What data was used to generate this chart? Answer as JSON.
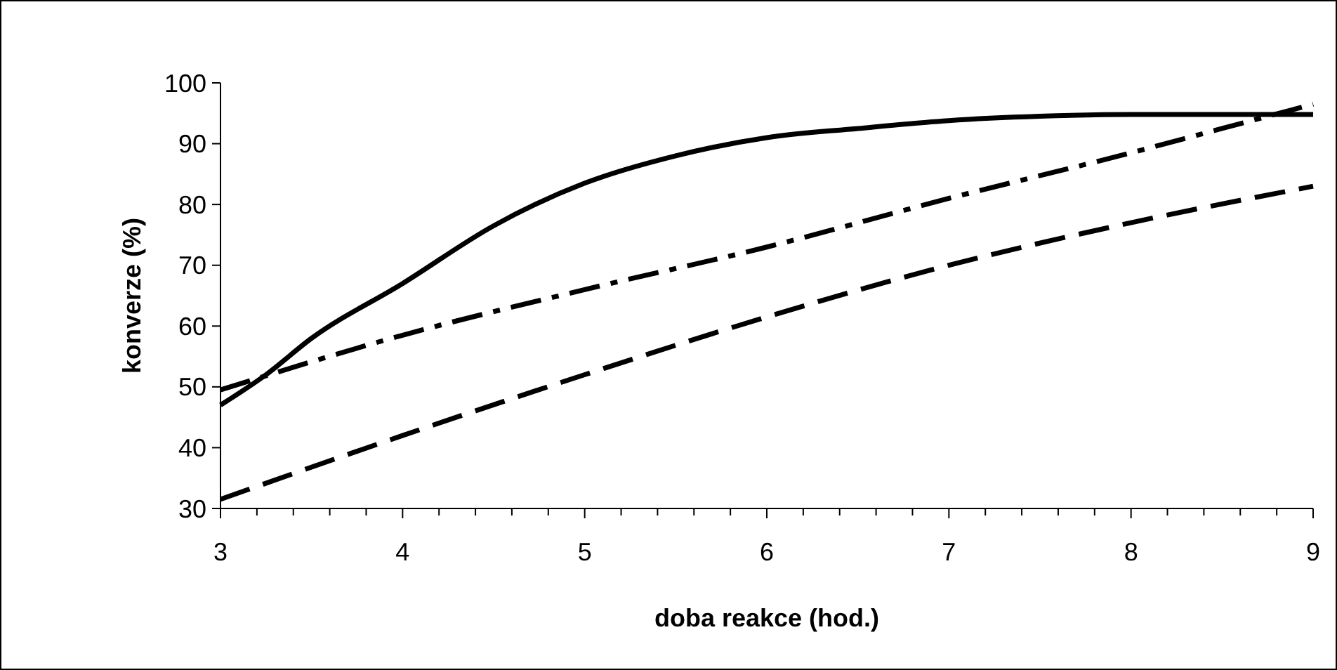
{
  "chart_data": {
    "type": "line",
    "xlabel": "doba reakce (hod.)",
    "ylabel": "konverze (%)",
    "xlim": [
      3,
      9
    ],
    "ylim": [
      30,
      100
    ],
    "xticks": [
      3,
      {
        "value": 3.2,
        "label": null
      },
      {
        "value": 3.4,
        "label": null
      },
      {
        "value": 3.6,
        "label": null
      },
      {
        "value": 3.8,
        "label": null
      },
      4,
      {
        "value": 4.2,
        "label": null
      },
      {
        "value": 4.4,
        "label": null
      },
      {
        "value": 4.6,
        "label": null
      },
      {
        "value": 4.8,
        "label": null
      },
      5,
      {
        "value": 5.2,
        "label": null
      },
      {
        "value": 5.4,
        "label": null
      },
      {
        "value": 5.6,
        "label": null
      },
      {
        "value": 5.8,
        "label": null
      },
      6,
      {
        "value": 6.2,
        "label": null
      },
      {
        "value": 6.4,
        "label": null
      },
      {
        "value": 6.6,
        "label": null
      },
      {
        "value": 6.8,
        "label": null
      },
      7,
      {
        "value": 7.2,
        "label": null
      },
      {
        "value": 7.4,
        "label": null
      },
      {
        "value": 7.6,
        "label": null
      },
      {
        "value": 7.8,
        "label": null
      },
      8,
      {
        "value": 8.2,
        "label": null
      },
      {
        "value": 8.4,
        "label": null
      },
      {
        "value": 8.6,
        "label": null
      },
      {
        "value": 8.8,
        "label": null
      },
      9
    ],
    "yticks": [
      30,
      40,
      50,
      60,
      70,
      80,
      90,
      100
    ],
    "grid": false,
    "marker": "none",
    "series": [
      {
        "color": "#000000",
        "line_style": "solid",
        "x": [
          3,
          3.25,
          3.5,
          4,
          4.5,
          5,
          5.5,
          6,
          6.5,
          7,
          7.5,
          8,
          8.5,
          9
        ],
        "values": [
          47,
          52,
          58,
          67,
          76.5,
          83.5,
          88,
          91,
          92.5,
          93.8,
          94.5,
          94.8,
          94.8,
          94.8
        ]
      },
      {
        "color": "#000000",
        "line_style": "dashdot",
        "x": [
          3,
          4,
          5,
          6,
          7,
          8,
          8.5,
          9
        ],
        "values": [
          49.5,
          58.5,
          66,
          73,
          81,
          88.5,
          92.5,
          96.5
        ]
      },
      {
        "color": "#000000",
        "line_style": "dashed",
        "x": [
          3,
          4,
          5,
          6,
          7,
          8,
          9
        ],
        "values": [
          31.5,
          42,
          52,
          61.5,
          70,
          77,
          83
        ]
      }
    ]
  }
}
